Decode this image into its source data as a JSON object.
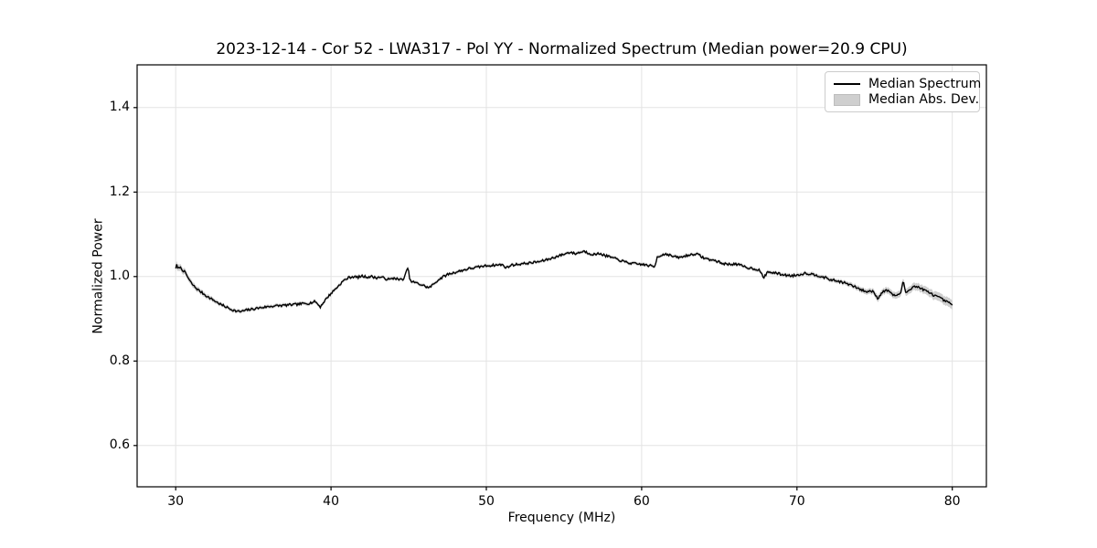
{
  "figure": {
    "title": "2023-12-14 - Cor 52 - LWA317 - Pol YY - Normalized Spectrum (Median power=20.9 CPU)",
    "xlabel": "Frequency (MHz)",
    "ylabel": "Normalized Power",
    "background_color": "#ffffff",
    "grid_color": "#e3e3e3",
    "spine_color": "#000000"
  },
  "legend": {
    "entries": [
      {
        "label": "Median Spectrum",
        "type": "line",
        "color": "#000000"
      },
      {
        "label": "Median Abs. Dev.",
        "type": "patch",
        "color": "#cfcfcf"
      }
    ]
  },
  "chart_data": {
    "type": "line",
    "title": "2023-12-14 - Cor 52 - LWA317 - Pol YY - Normalized Spectrum (Median power=20.9 CPU)",
    "xlabel": "Frequency (MHz)",
    "ylabel": "Normalized Power",
    "xlim": [
      27.5,
      82.3
    ],
    "ylim": [
      0.5,
      1.5
    ],
    "x_ticks": [
      30,
      40,
      50,
      60,
      70,
      80
    ],
    "x_tick_labels": [
      "30",
      "40",
      "50",
      "60",
      "70",
      "80"
    ],
    "y_ticks": [
      0.6,
      0.8,
      1.0,
      1.2,
      1.4
    ],
    "y_tick_labels": [
      "0.6",
      "0.8",
      "1.0",
      "1.2",
      "1.4"
    ],
    "grid": true,
    "legend_position": "upper right",
    "median_power_cpu": 20.9,
    "series": [
      {
        "name": "Median Spectrum",
        "color": "#000000",
        "points": [
          [
            30.0,
            1.021
          ],
          [
            30.05,
            1.028
          ],
          [
            30.15,
            1.017
          ],
          [
            30.25,
            1.023
          ],
          [
            30.4,
            1.017
          ],
          [
            30.55,
            1.012
          ],
          [
            30.7,
            1.004
          ],
          [
            30.9,
            0.99
          ],
          [
            31.1,
            0.98
          ],
          [
            31.3,
            0.973
          ],
          [
            31.5,
            0.967
          ],
          [
            31.8,
            0.959
          ],
          [
            32.1,
            0.951
          ],
          [
            32.4,
            0.945
          ],
          [
            32.7,
            0.938
          ],
          [
            33.0,
            0.932
          ],
          [
            33.3,
            0.927
          ],
          [
            33.6,
            0.922
          ],
          [
            33.9,
            0.918
          ],
          [
            34.2,
            0.917
          ],
          [
            34.5,
            0.92
          ],
          [
            34.8,
            0.922
          ],
          [
            35.1,
            0.924
          ],
          [
            35.4,
            0.926
          ],
          [
            35.8,
            0.928
          ],
          [
            36.2,
            0.93
          ],
          [
            36.6,
            0.931
          ],
          [
            37.0,
            0.932
          ],
          [
            37.4,
            0.933
          ],
          [
            37.8,
            0.934
          ],
          [
            38.2,
            0.936
          ],
          [
            38.6,
            0.937
          ],
          [
            39.0,
            0.941
          ],
          [
            39.3,
            0.928
          ],
          [
            39.5,
            0.938
          ],
          [
            39.7,
            0.948
          ],
          [
            40.0,
            0.96
          ],
          [
            40.4,
            0.975
          ],
          [
            40.8,
            0.99
          ],
          [
            41.1,
            0.997
          ],
          [
            41.4,
            1.0
          ],
          [
            41.7,
            0.998
          ],
          [
            42.0,
            1.001
          ],
          [
            42.3,
            0.999
          ],
          [
            42.6,
            1.0
          ],
          [
            42.9,
            0.997
          ],
          [
            43.2,
            0.999
          ],
          [
            43.5,
            0.995
          ],
          [
            43.8,
            0.993
          ],
          [
            44.1,
            0.997
          ],
          [
            44.4,
            0.992
          ],
          [
            44.7,
            0.995
          ],
          [
            44.95,
            1.022
          ],
          [
            45.1,
            0.989
          ],
          [
            45.4,
            0.986
          ],
          [
            45.7,
            0.982
          ],
          [
            46.0,
            0.978
          ],
          [
            46.3,
            0.973
          ],
          [
            46.6,
            0.982
          ],
          [
            46.9,
            0.992
          ],
          [
            47.2,
            0.999
          ],
          [
            47.5,
            1.005
          ],
          [
            47.8,
            1.008
          ],
          [
            48.1,
            1.011
          ],
          [
            48.5,
            1.015
          ],
          [
            48.9,
            1.019
          ],
          [
            49.3,
            1.021
          ],
          [
            49.7,
            1.024
          ],
          [
            50.1,
            1.026
          ],
          [
            50.5,
            1.027
          ],
          [
            51.0,
            1.028
          ],
          [
            51.3,
            1.021
          ],
          [
            51.6,
            1.027
          ],
          [
            52.0,
            1.029
          ],
          [
            52.5,
            1.031
          ],
          [
            53.0,
            1.033
          ],
          [
            53.5,
            1.036
          ],
          [
            54.0,
            1.041
          ],
          [
            54.5,
            1.047
          ],
          [
            55.0,
            1.053
          ],
          [
            55.4,
            1.058
          ],
          [
            55.7,
            1.054
          ],
          [
            56.0,
            1.057
          ],
          [
            56.3,
            1.06
          ],
          [
            56.6,
            1.055
          ],
          [
            57.0,
            1.052
          ],
          [
            57.3,
            1.055
          ],
          [
            57.6,
            1.05
          ],
          [
            58.0,
            1.046
          ],
          [
            58.4,
            1.041
          ],
          [
            58.8,
            1.036
          ],
          [
            59.2,
            1.032
          ],
          [
            59.6,
            1.03
          ],
          [
            60.0,
            1.029
          ],
          [
            60.3,
            1.027
          ],
          [
            60.6,
            1.025
          ],
          [
            60.85,
            1.023
          ],
          [
            61.0,
            1.047
          ],
          [
            61.3,
            1.051
          ],
          [
            61.6,
            1.054
          ],
          [
            61.9,
            1.049
          ],
          [
            62.2,
            1.046
          ],
          [
            62.5,
            1.045
          ],
          [
            62.8,
            1.049
          ],
          [
            63.1,
            1.051
          ],
          [
            63.4,
            1.054
          ],
          [
            63.7,
            1.051
          ],
          [
            64.0,
            1.044
          ],
          [
            64.4,
            1.04
          ],
          [
            64.8,
            1.037
          ],
          [
            65.2,
            1.031
          ],
          [
            65.6,
            1.029
          ],
          [
            66.0,
            1.03
          ],
          [
            66.4,
            1.026
          ],
          [
            66.8,
            1.021
          ],
          [
            67.2,
            1.019
          ],
          [
            67.6,
            1.015
          ],
          [
            67.85,
            0.996
          ],
          [
            68.1,
            1.011
          ],
          [
            68.5,
            1.009
          ],
          [
            68.9,
            1.006
          ],
          [
            69.3,
            1.003
          ],
          [
            69.7,
            1.002
          ],
          [
            70.1,
            1.004
          ],
          [
            70.5,
            1.008
          ],
          [
            70.9,
            1.006
          ],
          [
            71.3,
            1.003
          ],
          [
            71.7,
            0.999
          ],
          [
            72.1,
            0.993
          ],
          [
            72.5,
            0.99
          ],
          [
            72.9,
            0.987
          ],
          [
            73.3,
            0.982
          ],
          [
            73.7,
            0.976
          ],
          [
            74.1,
            0.969
          ],
          [
            74.5,
            0.964
          ],
          [
            74.9,
            0.966
          ],
          [
            75.2,
            0.948
          ],
          [
            75.5,
            0.964
          ],
          [
            75.9,
            0.968
          ],
          [
            76.2,
            0.955
          ],
          [
            76.5,
            0.957
          ],
          [
            76.7,
            0.962
          ],
          [
            76.85,
            0.991
          ],
          [
            77.0,
            0.961
          ],
          [
            77.2,
            0.968
          ],
          [
            77.5,
            0.977
          ],
          [
            77.8,
            0.975
          ],
          [
            78.1,
            0.97
          ],
          [
            78.4,
            0.964
          ],
          [
            78.7,
            0.958
          ],
          [
            79.0,
            0.953
          ],
          [
            79.3,
            0.947
          ],
          [
            79.6,
            0.941
          ],
          [
            80.0,
            0.933
          ]
        ]
      },
      {
        "name": "Median Abs. Dev.",
        "color": "#cfcfcf",
        "band_halfwidth": [
          [
            30,
            0.008
          ],
          [
            31.5,
            0.006
          ],
          [
            33,
            0.0045
          ],
          [
            40,
            0.004
          ],
          [
            55,
            0.0038
          ],
          [
            65,
            0.004
          ],
          [
            70,
            0.0045
          ],
          [
            73,
            0.005
          ],
          [
            75,
            0.007
          ],
          [
            76.5,
            0.008
          ],
          [
            78,
            0.009
          ],
          [
            80,
            0.011
          ]
        ]
      }
    ]
  }
}
